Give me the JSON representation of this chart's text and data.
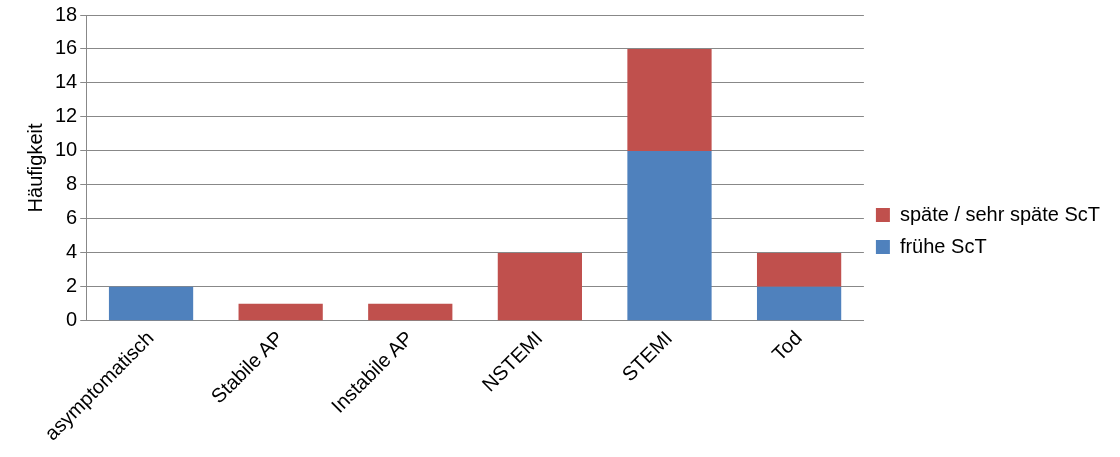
{
  "chart_data": {
    "type": "bar",
    "stacked": true,
    "ylabel": "Häufigkeit",
    "categories": [
      "asymptomatisch",
      "Stabile AP",
      "Instabile AP",
      "NSTEMI",
      "STEMI",
      "Tod"
    ],
    "series": [
      {
        "name": "frühe ScT",
        "color": "#4f81bd",
        "values": [
          2,
          0,
          0,
          0,
          10,
          2
        ]
      },
      {
        "name": "späte / sehr späte ScT",
        "color": "#c0504d",
        "values": [
          0,
          1,
          1,
          4,
          6,
          2
        ]
      }
    ],
    "ylim": [
      0,
      18
    ],
    "yticks": [
      0,
      2,
      4,
      6,
      8,
      10,
      12,
      14,
      16,
      18
    ],
    "grid": "y",
    "legend": "right"
  }
}
